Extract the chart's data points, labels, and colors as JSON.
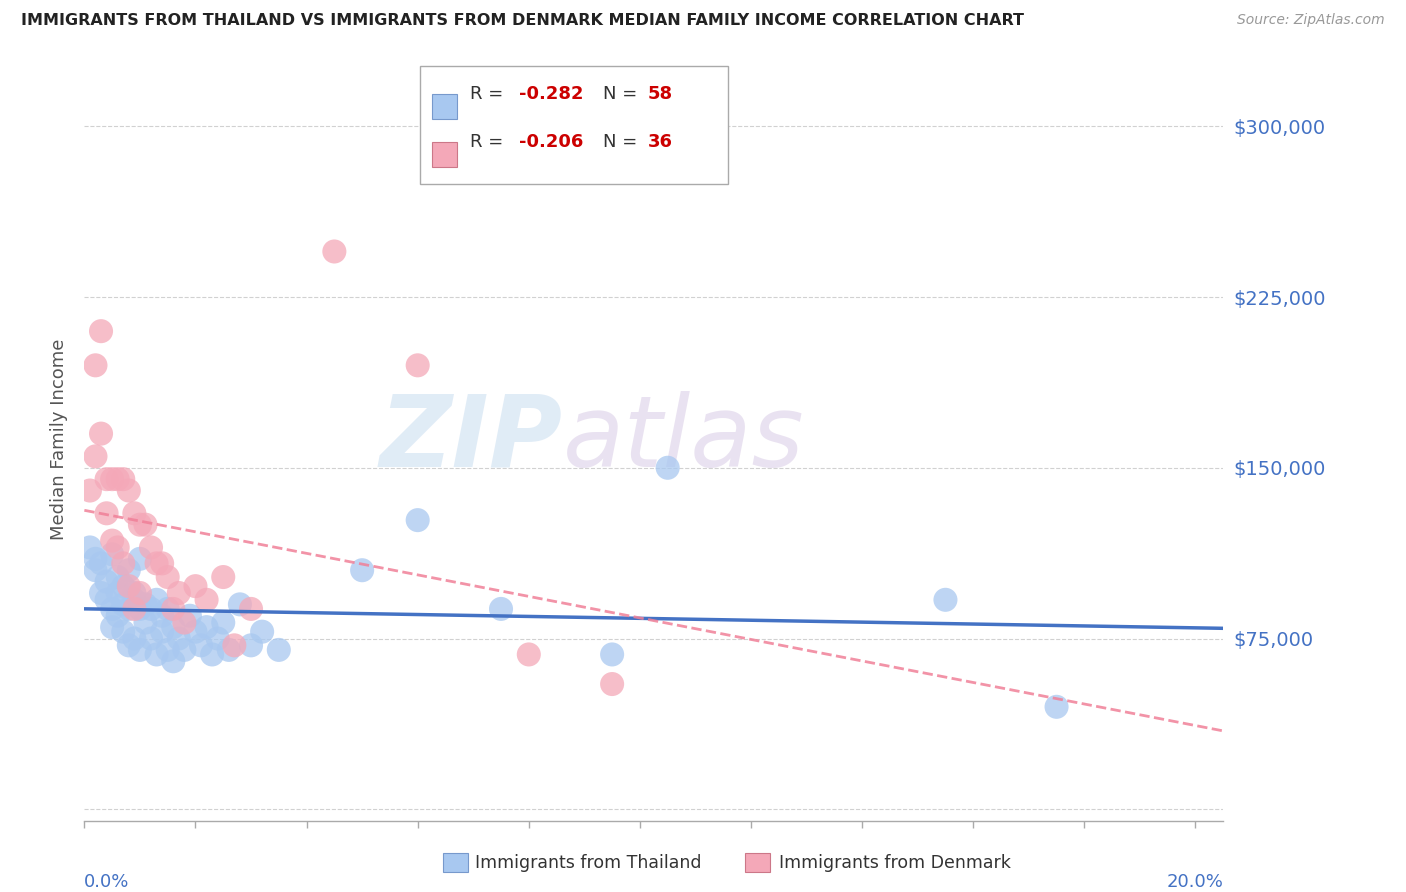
{
  "title": "IMMIGRANTS FROM THAILAND VS IMMIGRANTS FROM DENMARK MEDIAN FAMILY INCOME CORRELATION CHART",
  "source": "Source: ZipAtlas.com",
  "ylabel": "Median Family Income",
  "yticks": [
    0,
    75000,
    150000,
    225000,
    300000
  ],
  "ytick_labels": [
    "",
    "$75,000",
    "$150,000",
    "$225,000",
    "$300,000"
  ],
  "xlim": [
    0.0,
    0.205
  ],
  "ylim": [
    -5000,
    330000
  ],
  "legend_r1": "R = -0.282",
  "legend_n1": "N = 58",
  "legend_r2": "R = -0.206",
  "legend_n2": "N = 36",
  "color_thailand": "#a8c8f0",
  "color_denmark": "#f4a8b8",
  "color_thailand_line": "#4472c4",
  "color_denmark_line": "#f08098",
  "color_axis_labels": "#4472c4",
  "color_title": "#222222",
  "watermark_zip": "ZIP",
  "watermark_atlas": "atlas",
  "thailand_x": [
    0.001,
    0.002,
    0.002,
    0.003,
    0.003,
    0.004,
    0.004,
    0.005,
    0.005,
    0.005,
    0.006,
    0.006,
    0.006,
    0.007,
    0.007,
    0.007,
    0.008,
    0.008,
    0.008,
    0.009,
    0.009,
    0.009,
    0.01,
    0.01,
    0.01,
    0.011,
    0.011,
    0.012,
    0.012,
    0.013,
    0.013,
    0.014,
    0.014,
    0.015,
    0.015,
    0.016,
    0.016,
    0.017,
    0.018,
    0.019,
    0.02,
    0.021,
    0.022,
    0.023,
    0.024,
    0.025,
    0.026,
    0.028,
    0.03,
    0.032,
    0.035,
    0.05,
    0.06,
    0.075,
    0.095,
    0.105,
    0.155,
    0.175
  ],
  "thailand_y": [
    115000,
    110000,
    105000,
    95000,
    108000,
    92000,
    100000,
    88000,
    80000,
    112000,
    95000,
    85000,
    102000,
    90000,
    78000,
    98000,
    88000,
    72000,
    105000,
    92000,
    75000,
    95000,
    88000,
    70000,
    110000,
    82000,
    90000,
    75000,
    88000,
    68000,
    92000,
    78000,
    85000,
    70000,
    88000,
    65000,
    80000,
    75000,
    70000,
    85000,
    78000,
    72000,
    80000,
    68000,
    75000,
    82000,
    70000,
    90000,
    72000,
    78000,
    70000,
    105000,
    127000,
    88000,
    68000,
    150000,
    92000,
    45000
  ],
  "denmark_x": [
    0.001,
    0.002,
    0.002,
    0.003,
    0.003,
    0.004,
    0.004,
    0.005,
    0.005,
    0.006,
    0.006,
    0.007,
    0.007,
    0.008,
    0.008,
    0.009,
    0.009,
    0.01,
    0.01,
    0.011,
    0.012,
    0.013,
    0.014,
    0.015,
    0.016,
    0.017,
    0.018,
    0.02,
    0.022,
    0.025,
    0.027,
    0.03,
    0.045,
    0.06,
    0.08,
    0.095
  ],
  "denmark_y": [
    140000,
    195000,
    155000,
    210000,
    165000,
    145000,
    130000,
    145000,
    118000,
    145000,
    115000,
    145000,
    108000,
    140000,
    98000,
    130000,
    88000,
    125000,
    95000,
    125000,
    115000,
    108000,
    108000,
    102000,
    88000,
    95000,
    82000,
    98000,
    92000,
    102000,
    72000,
    88000,
    245000,
    195000,
    68000,
    55000
  ]
}
